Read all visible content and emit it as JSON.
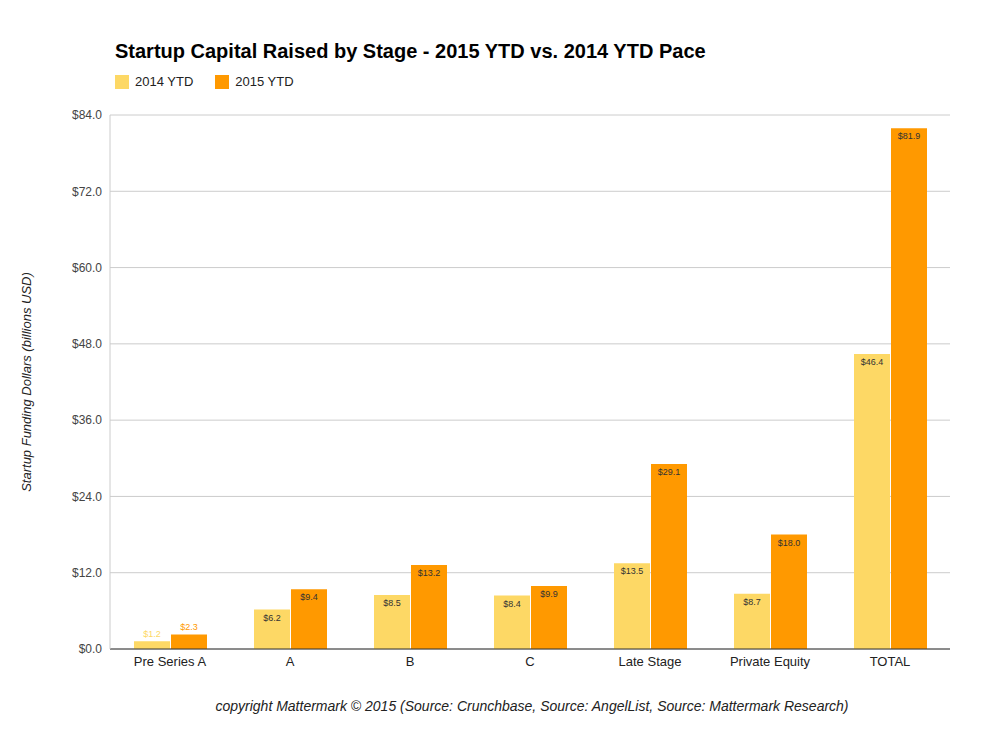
{
  "chart_data": {
    "type": "bar",
    "title": "Startup Capital Raised by Stage - 2015 YTD vs. 2014 YTD Pace",
    "y_label": "Startup Funding Dollars (billions USD)",
    "annotations": [
      "copyright Mattermark © 2015 (Source: Crunchbase, Source: AngelList, Source: Mattermark Research)"
    ],
    "categories": [
      "Pre Series A",
      "A",
      "B",
      "C",
      "Late Stage",
      "Private Equity",
      "TOTAL"
    ],
    "series": [
      {
        "name": "2014 YTD",
        "color": "#fdd865",
        "values": [
          1.2,
          6.2,
          8.5,
          8.4,
          13.5,
          8.7,
          46.4
        ],
        "value_labels": [
          "$1.2",
          "$6.2",
          "$8.5",
          "$8.4",
          "$13.5",
          "$8.7",
          "$46.4"
        ]
      },
      {
        "name": "2015 YTD",
        "color": "#ff9900",
        "values": [
          2.3,
          9.4,
          13.2,
          9.9,
          29.1,
          18.0,
          81.9
        ],
        "value_labels": [
          "$2.3",
          "$9.4",
          "$13.2",
          "$9.9",
          "$29.1",
          "$18.0",
          "$81.9"
        ]
      }
    ],
    "ylim": [
      0,
      84
    ],
    "yticks": [
      {
        "value": 0,
        "label": "$0.0"
      },
      {
        "value": 12,
        "label": "$12.0"
      },
      {
        "value": 24,
        "label": "$24.0"
      },
      {
        "value": 36,
        "label": "$36.0"
      },
      {
        "value": 48,
        "label": "$48.0"
      },
      {
        "value": 60,
        "label": "$60.0"
      },
      {
        "value": 72,
        "label": "$72.0"
      },
      {
        "value": 84,
        "label": "$84.0"
      }
    ],
    "grid": true,
    "legend": "top-left",
    "data_labels": true
  }
}
